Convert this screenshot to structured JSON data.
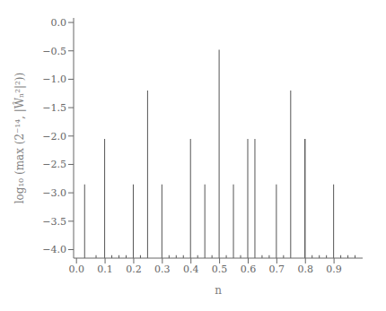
{
  "chart_data": {
    "type": "bar",
    "xlabel": "n",
    "ylabel": "log₁₀ (max (2⁻¹⁴, |Ŵₙ²|²))",
    "x": [
      0.03,
      0.07,
      0.125,
      0.15,
      0.175,
      0.2,
      0.225,
      0.25,
      0.3,
      0.325,
      0.35,
      0.375,
      0.4,
      0.425,
      0.45,
      0.475,
      0.5,
      0.525,
      0.55,
      0.575,
      0.625,
      0.65,
      0.675,
      0.7,
      0.725,
      0.75,
      0.8,
      0.825,
      0.85,
      0.875,
      0.9,
      0.925,
      0.95,
      0.975,
      0.1,
      0.6,
      0.8
    ],
    "values": [
      -2.85,
      -4.1,
      -4.1,
      -4.1,
      -4.1,
      -2.85,
      -4.1,
      -1.2,
      -2.85,
      -4.1,
      -4.1,
      -4.1,
      -2.05,
      -4.1,
      -2.85,
      -4.1,
      -0.48,
      -4.1,
      -2.85,
      -4.1,
      -2.05,
      -4.1,
      -4.1,
      -2.85,
      -4.1,
      -1.2,
      -2.05,
      -4.1,
      -4.1,
      -4.1,
      -2.85,
      -4.1,
      -4.1,
      -4.1,
      -2.05,
      -2.05,
      -2.05
    ],
    "color": "#555555",
    "xlim": [
      -0.01,
      1.0
    ],
    "ylim": [
      -4.15,
      0.08
    ],
    "xticks": [
      {
        "value": 0,
        "label": "0.0"
      },
      {
        "value": 0.1,
        "label": "0.1"
      },
      {
        "value": 0.2,
        "label": "0.2"
      },
      {
        "value": 0.3,
        "label": "0.3"
      },
      {
        "value": 0.4,
        "label": "0.4"
      },
      {
        "value": 0.5,
        "label": "0.5"
      },
      {
        "value": 0.6,
        "label": "0.6"
      },
      {
        "value": 0.7,
        "label": "0.7"
      },
      {
        "value": 0.8,
        "label": "0.8"
      },
      {
        "value": 0.9,
        "label": "0.9"
      }
    ],
    "yticks": [
      {
        "value": 0,
        "label": "0.0"
      },
      {
        "value": -0.5,
        "label": "−0.5"
      },
      {
        "value": -1,
        "label": "−1.0"
      },
      {
        "value": -1.5,
        "label": "−1.5"
      },
      {
        "value": -2,
        "label": "−2.0"
      },
      {
        "value": -2.5,
        "label": "−2.5"
      },
      {
        "value": -3,
        "label": "−3.0"
      },
      {
        "value": -3.5,
        "label": "−3.5"
      },
      {
        "value": -4,
        "label": "−4.0"
      }
    ]
  }
}
